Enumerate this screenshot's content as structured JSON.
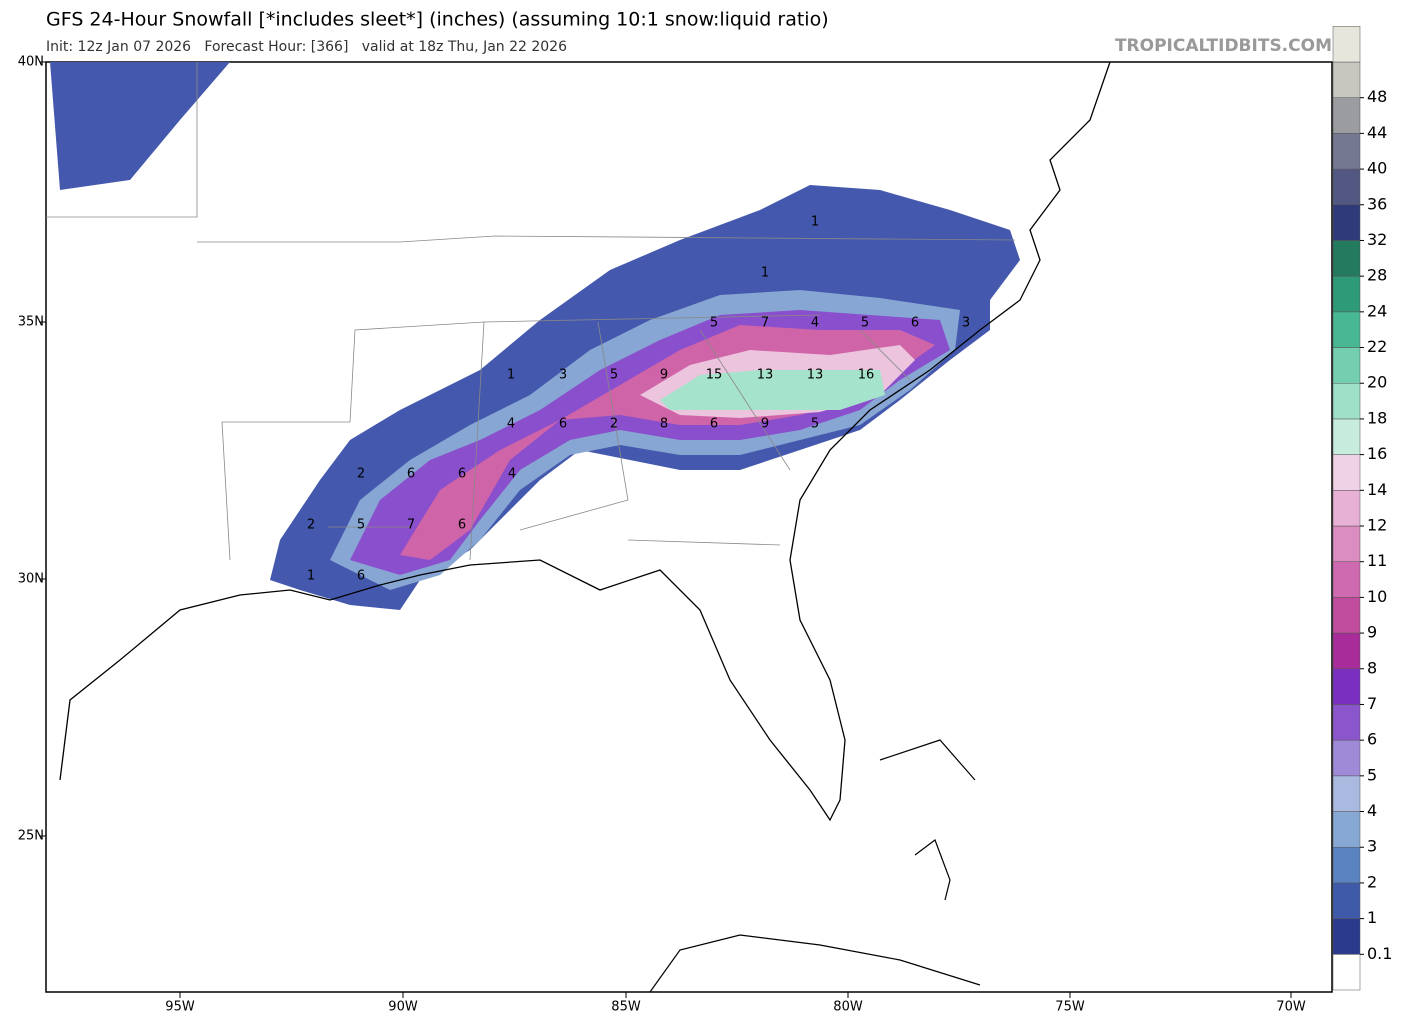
{
  "header": {
    "title": "GFS 24-Hour Snowfall [*includes sleet*] (inches) (assuming 10:1 snow:liquid ratio)",
    "subtitle": "Init: 12z Jan 07 2026   Forecast Hour: [366]   valid at 18z Thu, Jan 22 2026",
    "credit": "TROPICALTIDBITS.COM"
  },
  "map": {
    "lat_labels": [
      "40N",
      "35N",
      "30N",
      "25N"
    ],
    "lon_labels": [
      "95W",
      "90W",
      "85W",
      "80W",
      "75W",
      "70W"
    ],
    "point_labels": [
      "1",
      "1",
      "5",
      "7",
      "4",
      "5",
      "6",
      "3",
      "1",
      "3",
      "5",
      "9",
      "15",
      "13",
      "13",
      "16",
      "4",
      "6",
      "2",
      "8",
      "6",
      "9",
      "5",
      "2",
      "6",
      "6",
      "4",
      "2",
      "5",
      "7",
      "6",
      "1",
      "6"
    ]
  },
  "colorbar": {
    "labels": [
      "0.1",
      "1",
      "2",
      "3",
      "4",
      "5",
      "6",
      "7",
      "8",
      "9",
      "10",
      "11",
      "12",
      "14",
      "16",
      "18",
      "20",
      "22",
      "24",
      "28",
      "32",
      "36",
      "40",
      "44",
      "48"
    ],
    "colors": [
      "#ffffff",
      "#2b3a8c",
      "#3f5aa8",
      "#5a83c0",
      "#86a8d3",
      "#a9b9e0",
      "#9f8ad8",
      "#8b55cc",
      "#7a2fc0",
      "#a82c9a",
      "#c04c9e",
      "#d06ab0",
      "#db8cc0",
      "#e6b1d4",
      "#f0d2e6",
      "#c7ecdd",
      "#9fe0c8",
      "#73cfb0",
      "#48b894",
      "#2f9a78",
      "#237a5e",
      "#2e3a7a",
      "#535883",
      "#747890",
      "#9a9c9f",
      "#c7c7c0",
      "#e6e6dc"
    ]
  }
}
